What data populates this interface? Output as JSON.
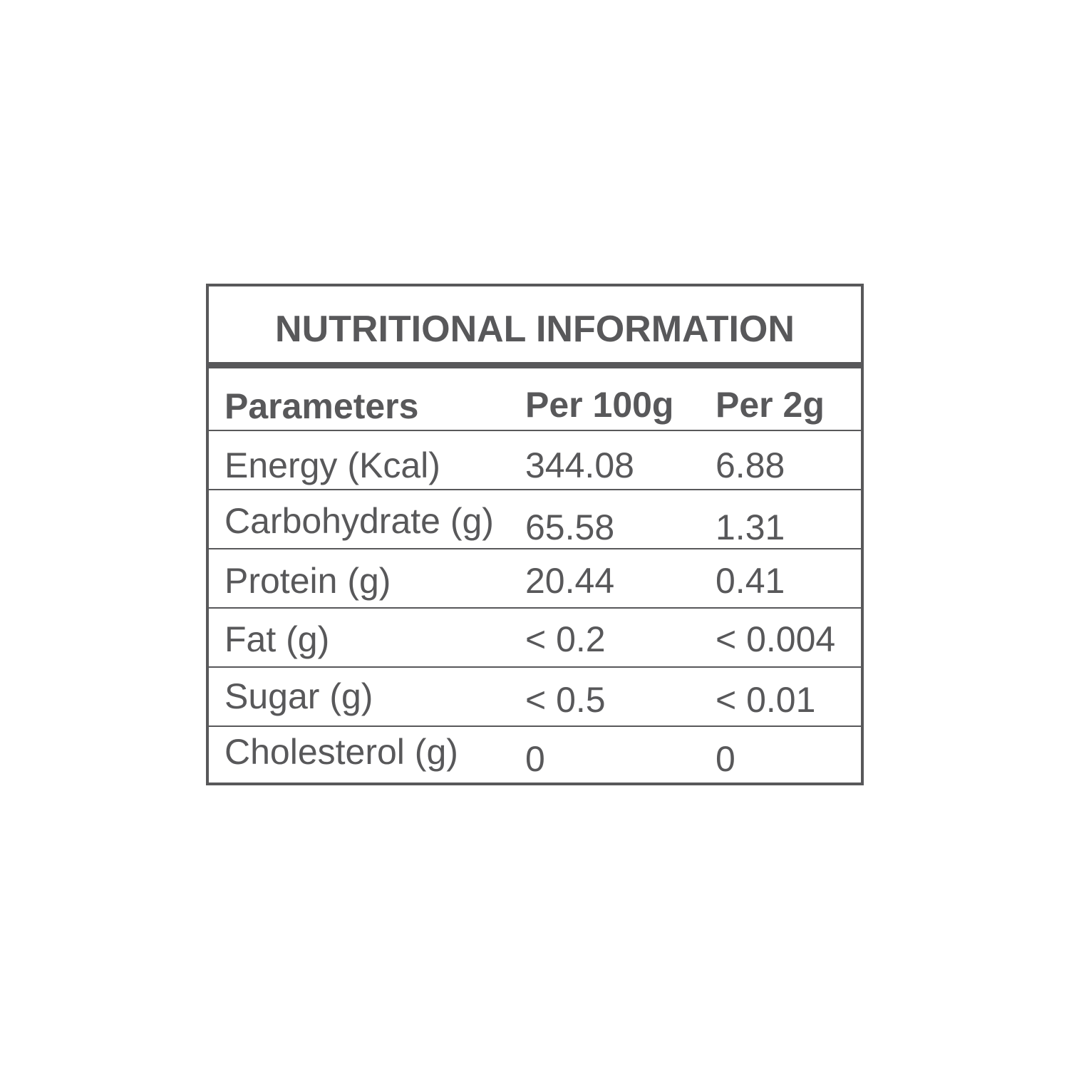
{
  "title": "NUTRITIONAL INFORMATION",
  "headers": [
    "Parameters",
    "Per 100g",
    "Per 2g"
  ],
  "rows": [
    [
      "Energy (Kcal)",
      "344.08",
      "6.88"
    ],
    [
      "Carbohydrate (g)",
      "65.58",
      "1.31"
    ],
    [
      "Protein (g)",
      "20.44",
      "0.41"
    ],
    [
      "Fat (g)",
      "< 0.2",
      "< 0.004"
    ],
    [
      "Sugar (g)",
      "< 0.5",
      "< 0.01"
    ],
    [
      "Cholesterol (g)",
      "0",
      "0"
    ]
  ],
  "colors": {
    "text": "#58585a",
    "border": "#58585a",
    "background": "#ffffff"
  }
}
